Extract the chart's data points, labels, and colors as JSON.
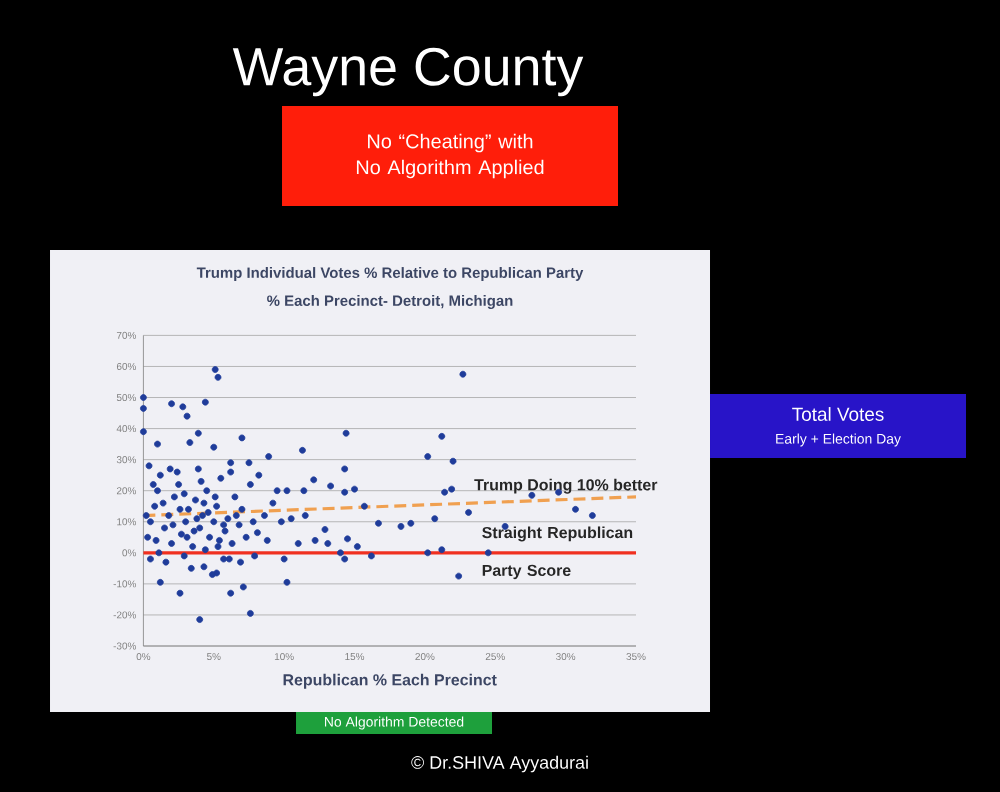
{
  "chart_data": {
    "type": "scatter",
    "title": "Trump Individual Votes % Relative to Republican Party",
    "subtitle": "% Each Precinct- Detroit, Michigan",
    "xlabel": "Republican % Each Precinct",
    "annotations": [
      "Wayne County",
      "No “Cheating” with No Algorithm Applied",
      "Total Votes",
      "Early + Election Day",
      "No Algorithm Detected",
      "© Dr.SHIVA Ayyadurai"
    ],
    "xlim": [
      0,
      35
    ],
    "xticks": [
      {
        "value": 0,
        "label": "0%"
      },
      {
        "value": 5,
        "label": "5%"
      },
      {
        "value": 10,
        "label": "10%"
      },
      {
        "value": 15,
        "label": "15%"
      },
      {
        "value": 20,
        "label": "20%"
      },
      {
        "value": 25,
        "label": "25%"
      },
      {
        "value": 30,
        "label": "30%"
      },
      {
        "value": 35,
        "label": "35%"
      }
    ],
    "ylim": [
      -30,
      70
    ],
    "yticks": [
      {
        "value": -30,
        "label": "-30%"
      },
      {
        "value": -20,
        "label": "-20%"
      },
      {
        "value": -10,
        "label": "-10%"
      },
      {
        "value": 0,
        "label": "0%"
      },
      {
        "value": 10,
        "label": "10%"
      },
      {
        "value": 20,
        "label": "20%"
      },
      {
        "value": 30,
        "label": "30%"
      },
      {
        "value": 40,
        "label": "40%"
      },
      {
        "value": 50,
        "label": "50%"
      },
      {
        "value": 60,
        "label": "60%"
      },
      {
        "value": 70,
        "label": "70%"
      }
    ],
    "grid": "y",
    "legend": false,
    "series": [
      {
        "color": "#1f3c9a",
        "x": [
          5.1,
          5.3,
          22.7,
          0,
          0,
          2.0,
          2.8,
          3.1,
          4.4,
          3.9,
          7.0,
          14.4,
          11.3,
          21.2,
          20.2,
          22.0,
          8.9,
          7.5,
          6.2,
          5.0,
          3.3,
          1,
          0,
          8.1,
          8.6,
          9.5,
          10.2,
          11.4,
          12.1,
          13.3,
          14.3,
          14.3,
          15,
          15.7,
          16.7,
          18.3,
          19,
          20.7,
          21.4,
          21.9,
          23.1,
          22.4,
          21.2,
          20.2,
          24.5,
          25.7,
          27.6,
          29.5,
          30.7,
          31.9,
          14,
          14.3,
          15.2,
          16.2,
          12.9,
          13.1,
          14.5,
          11,
          10,
          10.2,
          7.6,
          4,
          2.6,
          1.2,
          6.2,
          7.1,
          5.2,
          4.3,
          5.7,
          2.9,
          6.9,
          0.5,
          0.3,
          0.5,
          0.8,
          1,
          1.2,
          1.5,
          1.8,
          2,
          2.2,
          2.5,
          2.7,
          3,
          3.2,
          3.5,
          3.7,
          4,
          4.2,
          4.5,
          4.7,
          5,
          5.2,
          5.5,
          5.8,
          6,
          6.3,
          6.5,
          6.8,
          7,
          7.3,
          7.6,
          0.4,
          1.1,
          1.6,
          2.4,
          3.4,
          3.9,
          4.4,
          4.9,
          5.4,
          6.1,
          0.7,
          1.4,
          2.1,
          2.9,
          3.6,
          4.1,
          4.6,
          5.1,
          5.7,
          6.6,
          0.2,
          0.9,
          1.9,
          2.6,
          3.1,
          3.8,
          4.3,
          5.3,
          6.2,
          7.8,
          8.8,
          9.2,
          9.8,
          10.5,
          11.5,
          12.2,
          8.2,
          7.9
        ],
        "values": [
          59,
          56.5,
          57.5,
          50,
          46.5,
          48,
          47,
          44,
          48.5,
          38.5,
          37,
          38.5,
          33,
          37.5,
          31,
          29.5,
          31,
          29,
          29,
          34,
          35.5,
          35,
          39,
          6.5,
          12,
          20,
          20,
          20,
          23.5,
          21.5,
          27,
          19.5,
          20.5,
          15,
          9.5,
          8.5,
          9.5,
          11,
          19.5,
          20.5,
          13,
          -7.5,
          1,
          0,
          0,
          8.5,
          18.5,
          19.5,
          14,
          12,
          0,
          -2,
          2,
          -1,
          7.5,
          3,
          4.5,
          3,
          -2,
          -9.5,
          -19.5,
          -21.5,
          -13,
          -9.5,
          -13,
          -11,
          -6.5,
          -4.5,
          -2,
          -1,
          -3,
          -2,
          5,
          10,
          15,
          20,
          25,
          8,
          12,
          3,
          18,
          22,
          6,
          10,
          14,
          2,
          17,
          8,
          12,
          20,
          5,
          10,
          15,
          24,
          7,
          11,
          3,
          18,
          9,
          14,
          5,
          22,
          28,
          0,
          -3,
          26,
          -5,
          27,
          1,
          -7,
          4,
          -2,
          22,
          16,
          9,
          19,
          7,
          23,
          13,
          18,
          9,
          12,
          12,
          4,
          27,
          14,
          5,
          11,
          16,
          2,
          26,
          10,
          4,
          16,
          10,
          11,
          12,
          4,
          25,
          -1
        ]
      },
      {
        "type": "line",
        "name": "Trump Doing 10% better",
        "color": "#f0a050",
        "line_style": "dashed",
        "x": [
          0,
          35
        ],
        "values": [
          12,
          18
        ]
      },
      {
        "type": "line",
        "name": "Straight Republican Party Score",
        "color": "#f03020",
        "line_style": "solid",
        "x": [
          0,
          35
        ],
        "values": [
          0,
          0
        ]
      }
    ]
  }
}
